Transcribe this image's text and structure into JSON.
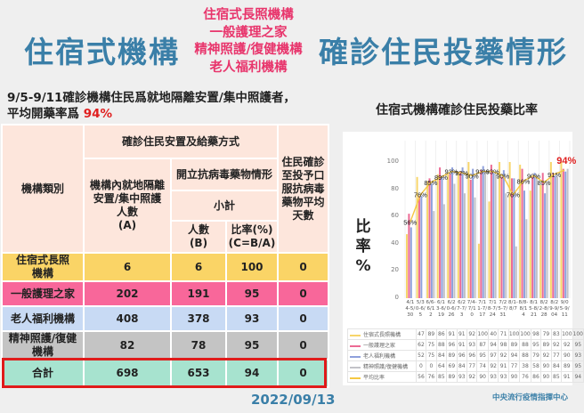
{
  "header": {
    "title_left": "住宿式機構",
    "title_right": "確診住民投藥情形",
    "categories_stack": [
      "住宿式長照機構",
      "一般護理之家",
      "精神照護/復健機構",
      "老人福利機構"
    ]
  },
  "subtitle": {
    "line1": "9/5-9/11確診機構住民爲就地隔離安置/集中照護者，",
    "line2_prefix": "平均開藥率爲 ",
    "line2_value": "94%"
  },
  "table": {
    "headers": {
      "category": "機構類別",
      "group": "確診住民安置及給藥方式",
      "col_a": "機構內就地隔離安置/集中照護人數(A)",
      "col_a_lines": [
        "機構內就地隔離",
        "安置/集中照護",
        "人數",
        "(A)"
      ],
      "antiviral": "開立抗病毒藥物情形",
      "subtotal": "小計",
      "col_b": [
        "人數",
        "(B)"
      ],
      "col_c": [
        "比率(%)",
        "(C=B/A)"
      ],
      "col_days": [
        "住民確診",
        "至投予口",
        "服抗病毒",
        "藥物平均",
        "天數"
      ]
    },
    "rows": [
      {
        "name": "住宿式長照機構",
        "name_lines": [
          "住宿式長照",
          "機構"
        ],
        "a": "6",
        "b": "6",
        "c": "100",
        "days": "0"
      },
      {
        "name": "一般護理之家",
        "name_lines": [
          "一般護理之家"
        ],
        "a": "202",
        "b": "191",
        "c": "95",
        "days": "0"
      },
      {
        "name": "老人福利機構",
        "name_lines": [
          "老人福利機構"
        ],
        "a": "408",
        "b": "378",
        "c": "93",
        "days": "0"
      },
      {
        "name": "精神照護/復健機構",
        "name_lines": [
          "精神照護/復健",
          "機構"
        ],
        "a": "82",
        "b": "78",
        "c": "95",
        "days": "0"
      },
      {
        "name": "合計",
        "name_lines": [
          "合計"
        ],
        "a": "698",
        "b": "653",
        "c": "94",
        "days": "0"
      }
    ]
  },
  "footer": {
    "date": "2022/09/13",
    "source": "中央流行疫情指揮中心"
  },
  "colors": {
    "title_blue": "#3a7fa8",
    "title_pink": "#e8356c",
    "highlight_red": "#e02020",
    "row_yellow": "#fad466",
    "row_pink": "#f8679a",
    "row_blue": "#c8daf4",
    "row_gray": "#c4c4c4",
    "row_green": "#a7e3cf",
    "header_peach": "#fde6dc"
  },
  "chart_data": {
    "type": "bar",
    "title": "住宿式機構確診住民投藥比率",
    "xlabel": "",
    "ylabel": "比率%",
    "ylim": [
      0,
      100
    ],
    "yticks": [
      0,
      20,
      40,
      60,
      80,
      100
    ],
    "grid": true,
    "legend_position": "bottom-table",
    "categories": [
      "4/14-5/30",
      "5/30-6/5",
      "6/6-6/12",
      "6/13-6/19",
      "6/20-6/26",
      "6/27-7/3",
      "7/4-7/10",
      "7/11-7/17",
      "7/18-7/24",
      "7/25-7/31",
      "8/1-8/7",
      "8/8-8/14",
      "8/15-8/21",
      "8/22-8/28",
      "8/29-9/04",
      "9/05-9/11"
    ],
    "series": [
      {
        "name": "住宿式長照機構",
        "type": "bar",
        "color": "#f7d56a",
        "values": [
          47,
          89,
          86,
          91,
          91,
          92,
          100,
          40,
          71,
          100,
          100,
          98,
          79,
          83,
          100,
          100
        ]
      },
      {
        "name": "一般護理之家",
        "type": "bar",
        "color": "#ec6a94",
        "values": [
          62,
          75,
          88,
          96,
          91,
          93,
          87,
          94,
          98,
          89,
          88,
          95,
          89,
          92,
          92,
          95
        ]
      },
      {
        "name": "老人福利機構",
        "type": "bar",
        "color": "#8fa0dc",
        "values": [
          52,
          75,
          84,
          89,
          96,
          96,
          95,
          97,
          92,
          94,
          88,
          79,
          92,
          77,
          90,
          93
        ]
      },
      {
        "name": "精神照護/復健機構",
        "type": "bar",
        "color": "#c2c2c8",
        "values": [
          0,
          0,
          64,
          69,
          84,
          77,
          74,
          92,
          91,
          77,
          38,
          58,
          90,
          84,
          89,
          95
        ]
      },
      {
        "name": "平均比率",
        "type": "line",
        "color": "#f5c842",
        "values": [
          56,
          76,
          85,
          89,
          93,
          92,
          90,
          93,
          93,
          90,
          76,
          86,
          90,
          85,
          91,
          94
        ]
      }
    ],
    "annotations": [
      "56%",
      "76%",
      "85%",
      "89%",
      "93%",
      "92%",
      "90%",
      "93%",
      "93%",
      "90%",
      "76%",
      "86%",
      "90%",
      "85%",
      "91%",
      "94%"
    ],
    "highlight_annotation": {
      "label": "94%",
      "color": "#e02020"
    }
  }
}
